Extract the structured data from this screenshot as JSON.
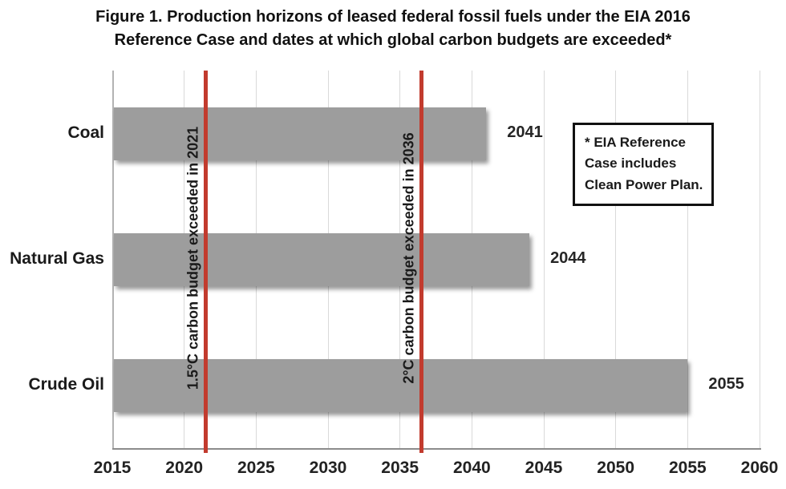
{
  "title_lines": [
    "Figure 1. Production horizons of leased federal fossil fuels under the EIA 2016",
    "Reference Case and dates at which global carbon budgets are exceeded*"
  ],
  "chart_data": {
    "type": "bar",
    "orientation": "horizontal",
    "title": "Figure 1. Production horizons of leased federal fossil fuels under the EIA 2016 Reference Case and dates at which global carbon budgets are exceeded*",
    "categories": [
      "Coal",
      "Natural Gas",
      "Crude Oil"
    ],
    "values": [
      2041,
      2044,
      2055
    ],
    "value_labels": [
      "2041",
      "2044",
      "2055"
    ],
    "bar_start": 2015,
    "xlim": [
      2015,
      2060
    ],
    "x_ticks": [
      "2015",
      "2020",
      "2025",
      "2030",
      "2035",
      "2040",
      "2045",
      "2050",
      "2055",
      "2060"
    ],
    "grid": true,
    "bar_color": "#9d9d9d",
    "vlines": [
      {
        "year": 2021,
        "label": "1.5°C carbon budget exceeded in 2021",
        "color": "#c23b2e"
      },
      {
        "year": 2036,
        "label": "2°C carbon budget exceeded in 2036",
        "color": "#c23b2e"
      }
    ],
    "annotation": "* EIA Reference Case includes Clean Power Plan."
  }
}
